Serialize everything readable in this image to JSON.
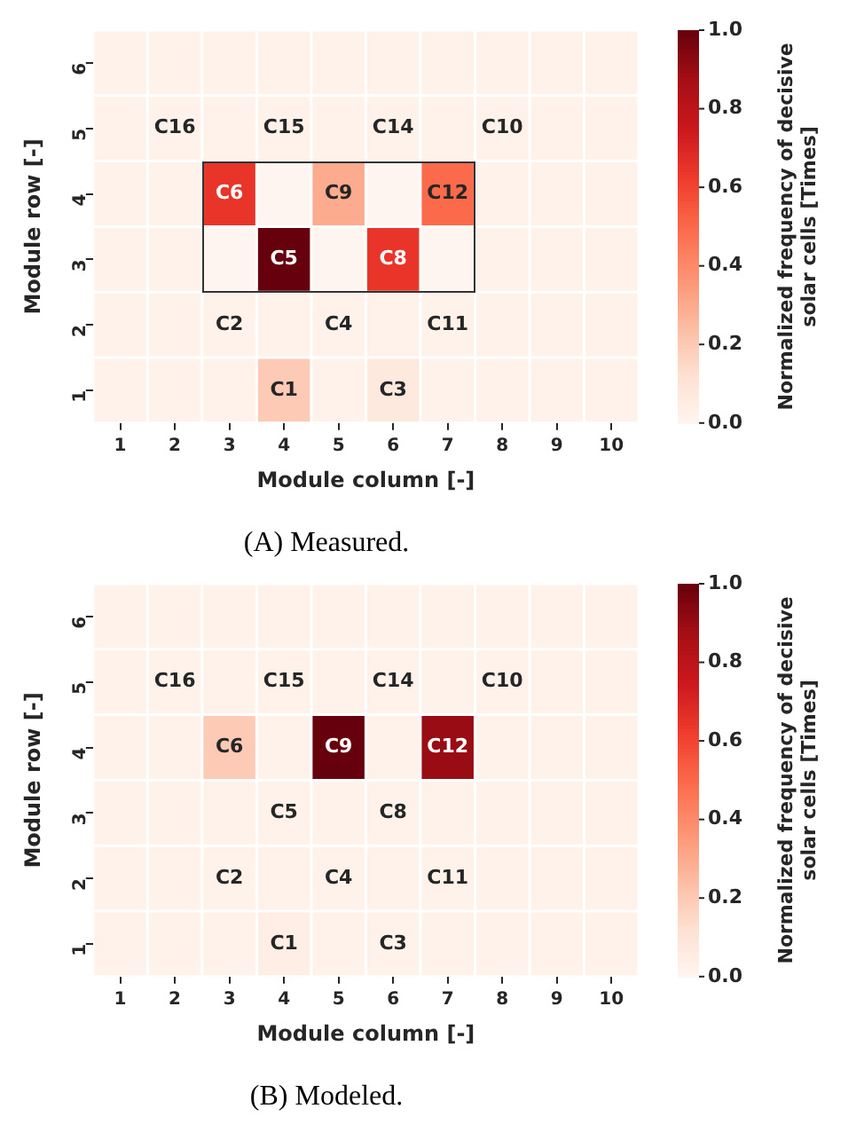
{
  "chart_data": [
    {
      "type": "heatmap",
      "title": "(A) Measured.",
      "xlabel": "Module column [-]",
      "ylabel": "Module row [-]",
      "clabel": "Normalized frequency of decisive solar cells [Times]",
      "categories": [
        "1",
        "2",
        "3",
        "4",
        "5",
        "6",
        "7",
        "8",
        "9",
        "10"
      ],
      "y_categories": [
        "6",
        "5",
        "4",
        "3",
        "2",
        "1"
      ],
      "cells": [
        [
          0.02,
          0.02,
          0.02,
          0.02,
          0.02,
          0.02,
          0.02,
          0.02,
          0.02,
          0.02
        ],
        [
          0.02,
          0.02,
          0.02,
          0.02,
          0.02,
          0.02,
          0.02,
          0.02,
          0.02,
          0.02
        ],
        [
          0.02,
          0.02,
          0.65,
          0,
          0.3,
          0,
          0.5,
          0.02,
          0.02,
          0.02
        ],
        [
          0.02,
          0.02,
          0,
          1.0,
          0,
          0.65,
          0,
          0.02,
          0.02,
          0.02
        ],
        [
          0.02,
          0.02,
          0.02,
          0.02,
          0.02,
          0.02,
          0.02,
          0.02,
          0.02,
          0.02
        ],
        [
          0.02,
          0.02,
          0.02,
          0.2,
          0.02,
          0.07,
          0.02,
          0.02,
          0.02,
          0.02
        ]
      ],
      "cell_labels": [
        [
          null,
          null,
          null,
          null,
          null,
          null,
          null,
          null,
          null,
          null
        ],
        [
          null,
          "C16",
          null,
          "C15",
          null,
          "C14",
          null,
          "C10",
          null,
          null
        ],
        [
          null,
          null,
          "C6",
          null,
          "C9",
          null,
          "C12",
          null,
          null,
          null
        ],
        [
          null,
          null,
          null,
          "C5",
          null,
          "C8",
          null,
          null,
          null,
          null
        ],
        [
          null,
          null,
          "C2",
          null,
          "C4",
          null,
          "C11",
          null,
          null,
          null
        ],
        [
          null,
          null,
          null,
          "C1",
          null,
          "C3",
          null,
          null,
          null,
          null
        ]
      ],
      "clim": [
        0,
        1
      ],
      "cticks": [
        {
          "value": 0,
          "label": "0.0"
        },
        {
          "value": 0.2,
          "label": "0.2"
        },
        {
          "value": 0.4,
          "label": "0.4"
        },
        {
          "value": 0.6,
          "label": "0.6"
        },
        {
          "value": 0.8,
          "label": "0.8"
        },
        {
          "value": 1,
          "label": "1.0"
        }
      ]
    },
    {
      "type": "heatmap",
      "title": "(B) Modeled.",
      "xlabel": "Module column [-]",
      "ylabel": "Module row [-]",
      "clabel": "Normalized frequency of decisive solar cells [Times]",
      "categories": [
        "1",
        "2",
        "3",
        "4",
        "5",
        "6",
        "7",
        "8",
        "9",
        "10"
      ],
      "y_categories": [
        "6",
        "5",
        "4",
        "3",
        "2",
        "1"
      ],
      "cells": [
        [
          0.02,
          0.02,
          0.02,
          0.02,
          0.02,
          0.02,
          0.02,
          0.02,
          0.02,
          0.02
        ],
        [
          0.02,
          0.02,
          0.02,
          0.02,
          0.02,
          0.02,
          0.02,
          0.02,
          0.02,
          0.02
        ],
        [
          0.02,
          0.02,
          0.2,
          0.02,
          1.0,
          0.02,
          0.9,
          0.02,
          0.02,
          0.02
        ],
        [
          0.02,
          0.02,
          0.02,
          0.02,
          0.02,
          0.02,
          0.02,
          0.02,
          0.02,
          0.02
        ],
        [
          0.02,
          0.02,
          0.02,
          0.02,
          0.02,
          0.02,
          0.02,
          0.02,
          0.02,
          0.02
        ],
        [
          0.02,
          0.02,
          0.02,
          0.04,
          0.02,
          0.02,
          0.02,
          0.02,
          0.02,
          0.02
        ]
      ],
      "cell_labels": [
        [
          null,
          null,
          null,
          null,
          null,
          null,
          null,
          null,
          null,
          null
        ],
        [
          null,
          "C16",
          null,
          "C15",
          null,
          "C14",
          null,
          "C10",
          null,
          null
        ],
        [
          null,
          null,
          "C6",
          null,
          "C9",
          null,
          "C12",
          null,
          null,
          null
        ],
        [
          null,
          null,
          null,
          "C5",
          null,
          "C8",
          null,
          null,
          null,
          null
        ],
        [
          null,
          null,
          "C2",
          null,
          "C4",
          null,
          "C11",
          null,
          null,
          null
        ],
        [
          null,
          null,
          null,
          "C1",
          null,
          "C3",
          null,
          null,
          null,
          null
        ]
      ],
      "clim": [
        0,
        1
      ],
      "cticks": [
        {
          "value": 0,
          "label": "0.0"
        },
        {
          "value": 0.2,
          "label": "0.2"
        },
        {
          "value": 0.4,
          "label": "0.4"
        },
        {
          "value": 0.6,
          "label": "0.6"
        },
        {
          "value": 0.8,
          "label": "0.8"
        },
        {
          "value": 1,
          "label": "1.0"
        }
      ]
    }
  ]
}
